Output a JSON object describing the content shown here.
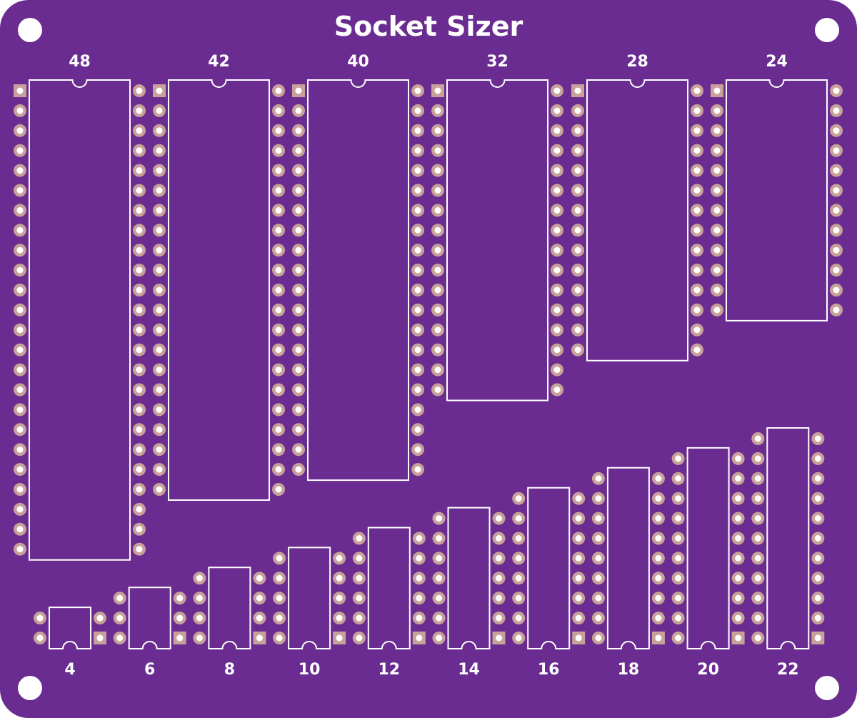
{
  "board": {
    "title": "Socket Sizer",
    "colors": {
      "board": "#6a2c91",
      "pad": "#c8a19a",
      "pad_hole": "#ffffff",
      "silkscreen": "#ffffff",
      "mounting_hole": "#ffffff"
    }
  },
  "top_row": [
    {
      "label": "48",
      "pins": 48
    },
    {
      "label": "42",
      "pins": 42
    },
    {
      "label": "40",
      "pins": 40
    },
    {
      "label": "32",
      "pins": 32
    },
    {
      "label": "28",
      "pins": 28
    },
    {
      "label": "24",
      "pins": 24
    }
  ],
  "bottom_row": [
    {
      "label": "4",
      "pins": 4
    },
    {
      "label": "6",
      "pins": 6
    },
    {
      "label": "8",
      "pins": 8
    },
    {
      "label": "10",
      "pins": 10
    },
    {
      "label": "12",
      "pins": 12
    },
    {
      "label": "14",
      "pins": 14
    },
    {
      "label": "16",
      "pins": 16
    },
    {
      "label": "18",
      "pins": 18
    },
    {
      "label": "20",
      "pins": 20
    },
    {
      "label": "22",
      "pins": 22
    }
  ]
}
